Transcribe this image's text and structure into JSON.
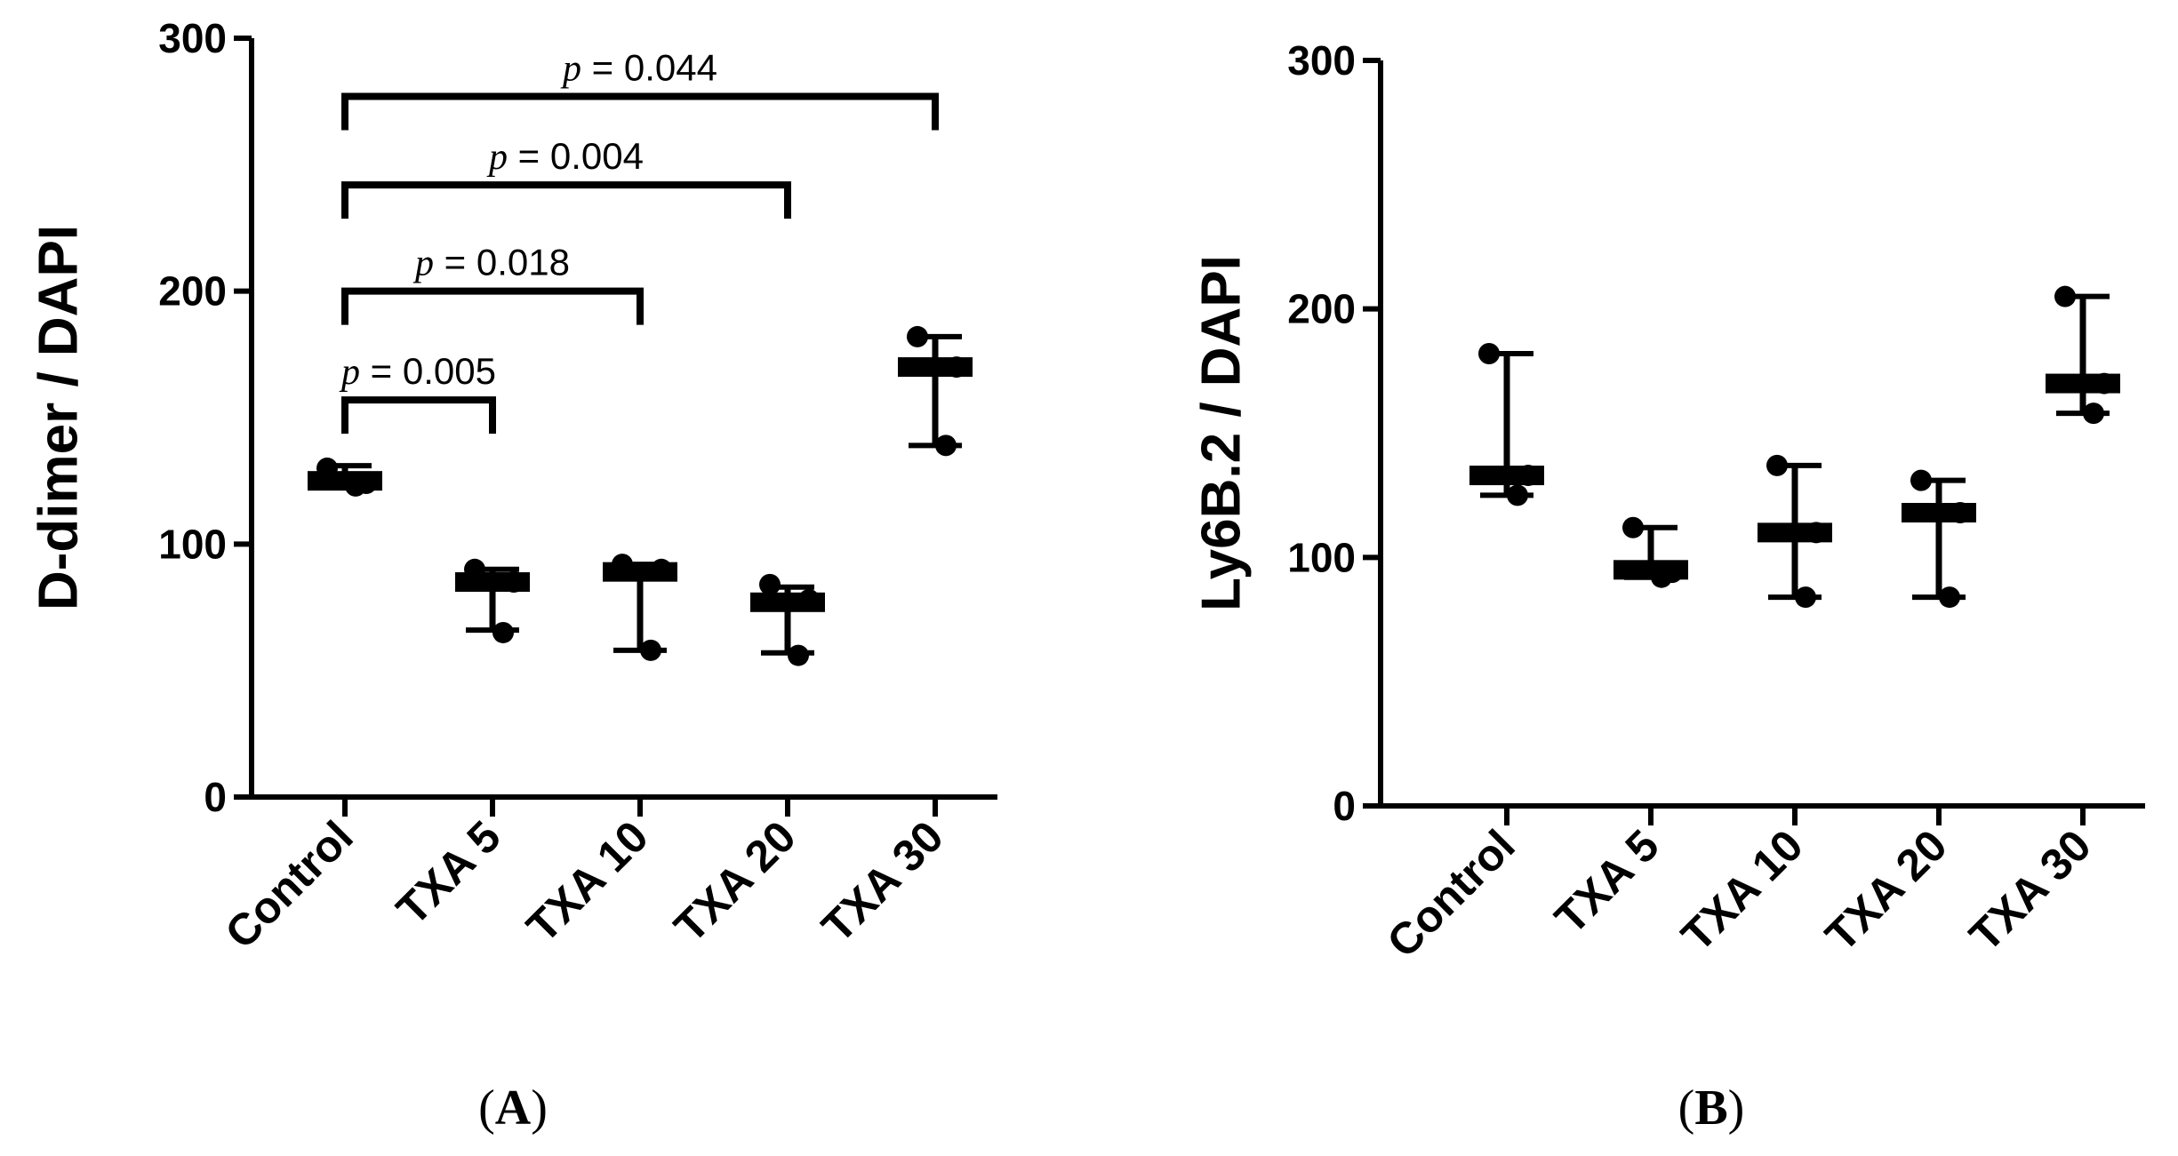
{
  "chart_data": [
    {
      "type": "scatter",
      "panel_label": "A",
      "ylabel": "D-dimer / DAPI",
      "xlabel": "",
      "ylim": [
        0,
        300
      ],
      "yticks": [
        "0",
        "100",
        "200",
        "300"
      ],
      "categories": [
        "Control",
        "TXA 5",
        "TXA 10",
        "TXA 20",
        "TXA 30"
      ],
      "groups": [
        {
          "name": "Control",
          "points": [
            130,
            124,
            123
          ],
          "median": 125,
          "min": 123,
          "max": 131
        },
        {
          "name": "TXA 5",
          "points": [
            90,
            85,
            65
          ],
          "median": 85,
          "min": 66,
          "max": 90
        },
        {
          "name": "TXA 10",
          "points": [
            92,
            90,
            58
          ],
          "median": 89,
          "min": 58,
          "max": 92
        },
        {
          "name": "TXA 20",
          "points": [
            84,
            78,
            56
          ],
          "median": 77,
          "min": 57,
          "max": 83
        },
        {
          "name": "TXA 30",
          "points": [
            182,
            170,
            139
          ],
          "median": 170,
          "min": 139,
          "max": 182
        }
      ],
      "comparisons": [
        {
          "from": "Control",
          "to": "TXA 5",
          "p_prefix": "p",
          "p_suffix": " = 0.005",
          "y": 157
        },
        {
          "from": "Control",
          "to": "TXA 10",
          "p_prefix": "p",
          "p_suffix": " = 0.018",
          "y": 200
        },
        {
          "from": "Control",
          "to": "TXA 20",
          "p_prefix": "p",
          "p_suffix": " = 0.004",
          "y": 242
        },
        {
          "from": "Control",
          "to": "TXA 30",
          "p_prefix": "p",
          "p_suffix": " = 0.044",
          "y": 277
        }
      ]
    },
    {
      "type": "scatter",
      "panel_label": "B",
      "ylabel": "Ly6B.2 / DAPI",
      "xlabel": "",
      "ylim": [
        0,
        300
      ],
      "yticks": [
        "0",
        "100",
        "200",
        "300"
      ],
      "categories": [
        "Control",
        "TXA 5",
        "TXA 10",
        "TXA 20",
        "TXA 30"
      ],
      "groups": [
        {
          "name": "Control",
          "points": [
            182,
            133,
            125
          ],
          "median": 133,
          "min": 125,
          "max": 182
        },
        {
          "name": "TXA 5",
          "points": [
            112,
            94,
            92
          ],
          "median": 95,
          "min": 92,
          "max": 112
        },
        {
          "name": "TXA 10",
          "points": [
            137,
            110,
            84
          ],
          "median": 110,
          "min": 84,
          "max": 137
        },
        {
          "name": "TXA 20",
          "points": [
            131,
            118,
            84
          ],
          "median": 118,
          "min": 84,
          "max": 131
        },
        {
          "name": "TXA 30",
          "points": [
            205,
            170,
            158
          ],
          "median": 170,
          "min": 158,
          "max": 205
        }
      ],
      "comparisons": []
    }
  ]
}
